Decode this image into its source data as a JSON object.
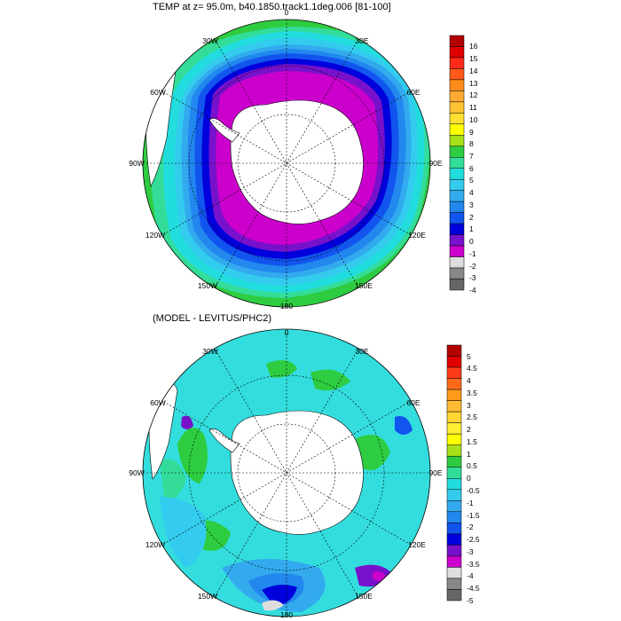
{
  "panels": [
    {
      "id": "top",
      "title": "TEMP at z=  95.0m, b40.1850.track1.1deg.006 [81-100]",
      "lon_labels": {
        "lon0": "0",
        "lon30e": "30E",
        "lon60e": "60E",
        "lon90e": "90E",
        "lon120e": "120E",
        "lon150e": "150E",
        "lon180": "180",
        "lon150w": "150W",
        "lon120w": "120W",
        "lon90w": "90W",
        "lon60w": "60W",
        "lon30w": "30W"
      },
      "colorbar": {
        "labels": [
          "16",
          "15",
          "14",
          "13",
          "12",
          "11",
          "10",
          "9",
          "8",
          "7",
          "6",
          "5",
          "4",
          "3",
          "2",
          "1",
          "0",
          "-1",
          "-2",
          "-3",
          "-4"
        ],
        "colors": [
          "#b30000",
          "#e00000",
          "#ff2a1a",
          "#ff5a1a",
          "#ff8c1a",
          "#ffaa33",
          "#ffc433",
          "#ffe033",
          "#ffff00",
          "#a8e01a",
          "#2ecc40",
          "#33dd99",
          "#22dddd",
          "#33ccee",
          "#33aaee",
          "#2288ee",
          "#1155ee",
          "#0000dd",
          "#7711cc",
          "#cc00cc",
          "#dddddd",
          "#888888",
          "#666666"
        ]
      },
      "fill_colors": {
        "outer_green": "#2ecc40",
        "teal": "#33dd99",
        "cyan": "#22dddd",
        "sky": "#33ccee",
        "light_blue": "#33aaee",
        "medium_blue": "#2288ee",
        "blue": "#1155ee",
        "dark_blue": "#0000dd",
        "purple": "#7711cc",
        "magenta": "#cc00cc",
        "land": "#ffffff"
      }
    },
    {
      "id": "bottom",
      "title": "(MODEL - LEVITUS/PHC2)",
      "lon_labels": {
        "lon0": "0",
        "lon30e": "30E",
        "lon60e": "60E",
        "lon90e": "90E",
        "lon120e": "120E",
        "lon150e": "150E",
        "lon180": "180",
        "lon150w": "150W",
        "lon120w": "120W",
        "lon90w": "90W",
        "lon60w": "60W",
        "lon30w": "30W"
      },
      "colorbar": {
        "labels": [
          "5",
          "4.5",
          "4",
          "3.5",
          "3",
          "2.5",
          "2",
          "1.5",
          "1",
          "0.5",
          "0",
          "-0.5",
          "-1",
          "-1.5",
          "-2",
          "-2.5",
          "-3",
          "-3.5",
          "-4",
          "-4.5",
          "-5"
        ],
        "colors": [
          "#b30000",
          "#e00000",
          "#ff3a1a",
          "#ff6a1a",
          "#ff9a1a",
          "#ffbb33",
          "#ffd633",
          "#ffee33",
          "#ffff00",
          "#a8e01a",
          "#2ecc40",
          "#33dd99",
          "#22dddd",
          "#33ccee",
          "#33aaee",
          "#2288ee",
          "#1155ee",
          "#0000dd",
          "#7711cc",
          "#cc00cc",
          "#dddddd",
          "#888888",
          "#666666"
        ]
      },
      "fill_colors": {
        "background_cyan": "#33dddd",
        "teal_patch": "#33dd99",
        "green_patch": "#2ecc40",
        "sky_patch": "#33ccee",
        "light_blue_patch": "#33aaee",
        "medium_blue_patch": "#2288ee",
        "blue_patch": "#1155ee",
        "dark_blue_patch": "#0000dd",
        "purple_patch": "#7711cc",
        "magenta_patch": "#cc00cc",
        "land": "#ffffff"
      }
    }
  ]
}
